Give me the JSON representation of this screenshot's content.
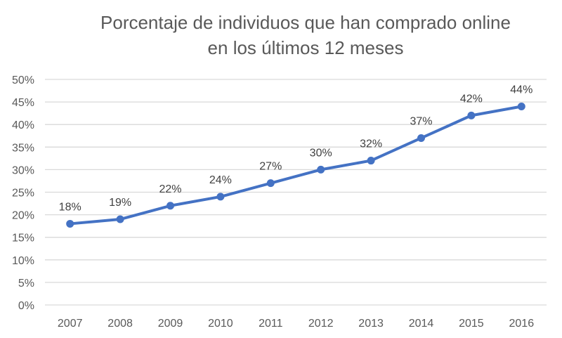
{
  "chart_data": {
    "type": "line",
    "title": "Porcentaje de individuos que han comprado online en los últimos 12 meses",
    "title_lines": [
      "Porcentaje de individuos que han comprado online",
      "en los últimos 12 meses"
    ],
    "categories": [
      "2007",
      "2008",
      "2009",
      "2010",
      "2011",
      "2012",
      "2013",
      "2014",
      "2015",
      "2016"
    ],
    "series": [
      {
        "values": [
          18,
          19,
          22,
          24,
          27,
          30,
          32,
          37,
          42,
          44
        ],
        "color": "#4472C4",
        "data_labels": [
          "18%",
          "19%",
          "22%",
          "24%",
          "27%",
          "30%",
          "32%",
          "37%",
          "42%",
          "44%"
        ]
      }
    ],
    "ylim": [
      0,
      50
    ],
    "yticks": [
      0,
      5,
      10,
      15,
      20,
      25,
      30,
      35,
      40,
      45,
      50
    ],
    "ytick_labels": [
      "0%",
      "5%",
      "10%",
      "15%",
      "20%",
      "25%",
      "30%",
      "35%",
      "40%",
      "45%",
      "50%"
    ],
    "grid": true,
    "gridline_color": "#D9D9D9",
    "xlabel": "",
    "ylabel": ""
  }
}
